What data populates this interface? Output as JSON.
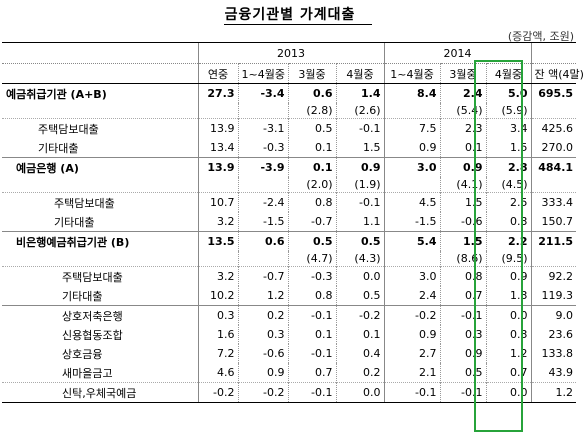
{
  "title": "금융기관별 가계대출",
  "unit": "(증감액, 조원)",
  "years": [
    "2013",
    "2014"
  ],
  "subheaders": [
    "연중",
    "1~4월중",
    "3월중",
    "4월중",
    "1~4월중",
    "3월중",
    "4월중",
    "잔 액(4말)"
  ],
  "rows": {
    "r1": {
      "label": "예금취급기관 (A+B)",
      "v": [
        "27.3",
        "-3.4",
        "0.6",
        "1.4",
        "8.4",
        "2.4",
        "5.0",
        "695.5"
      ]
    },
    "r1p": {
      "v": [
        "(2.8)",
        "(2.6)",
        "(5.4)",
        "(5.9)"
      ]
    },
    "r2": {
      "label": "주택담보대출",
      "v": [
        "13.9",
        "-3.1",
        "0.5",
        "-0.1",
        "7.5",
        "2.3",
        "3.4",
        "425.6"
      ]
    },
    "r3": {
      "label": "기타대출",
      "v": [
        "13.4",
        "-0.3",
        "0.1",
        "1.5",
        "0.9",
        "0.1",
        "1.5",
        "270.0"
      ]
    },
    "r4": {
      "label": "예금은행 (A)",
      "v": [
        "13.9",
        "-3.9",
        "0.1",
        "0.9",
        "3.0",
        "0.9",
        "2.8",
        "484.1"
      ]
    },
    "r4p": {
      "v": [
        "(2.0)",
        "(1.9)",
        "(4.1)",
        "(4.5)"
      ]
    },
    "r5": {
      "label": "주택담보대출",
      "v": [
        "10.7",
        "-2.4",
        "0.8",
        "-0.1",
        "4.5",
        "1.5",
        "2.5",
        "333.4"
      ]
    },
    "r6": {
      "label": "기타대출",
      "v": [
        "3.2",
        "-1.5",
        "-0.7",
        "1.1",
        "-1.5",
        "-0.6",
        "0.3",
        "150.7"
      ]
    },
    "r7": {
      "label": "비은행예금취급기관 (B)",
      "v": [
        "13.5",
        "0.6",
        "0.5",
        "0.5",
        "5.4",
        "1.5",
        "2.2",
        "211.5"
      ]
    },
    "r7p": {
      "v": [
        "(4.7)",
        "(4.3)",
        "(8.6)",
        "(9.5)"
      ]
    },
    "r8": {
      "label": "주택담보대출",
      "v": [
        "3.2",
        "-0.7",
        "-0.3",
        "0.0",
        "3.0",
        "0.8",
        "0.9",
        "92.2"
      ]
    },
    "r9": {
      "label": "기타대출",
      "v": [
        "10.2",
        "1.2",
        "0.8",
        "0.5",
        "2.4",
        "0.7",
        "1.3",
        "119.3"
      ]
    },
    "r10": {
      "label": "상호저축은행",
      "v": [
        "0.3",
        "0.2",
        "-0.1",
        "-0.2",
        "-0.2",
        "-0.1",
        "0.0",
        "9.0"
      ]
    },
    "r11": {
      "label": "신용협동조합",
      "v": [
        "1.6",
        "0.3",
        "0.1",
        "0.1",
        "0.9",
        "0.3",
        "0.3",
        "23.6"
      ]
    },
    "r12": {
      "label": "상호금융",
      "v": [
        "7.2",
        "-0.6",
        "-0.1",
        "0.4",
        "2.7",
        "0.9",
        "1.2",
        "133.8"
      ]
    },
    "r13": {
      "label": "새마을금고",
      "v": [
        "4.6",
        "0.9",
        "0.7",
        "0.2",
        "2.1",
        "0.5",
        "0.7",
        "43.9"
      ]
    },
    "r14": {
      "label": "신탁,우체국예금",
      "v": [
        "-0.2",
        "-0.2",
        "-0.1",
        "0.0",
        "-0.1",
        "-0.1",
        "0.0",
        "1.2"
      ]
    }
  },
  "highlight_color": "#27a33a"
}
